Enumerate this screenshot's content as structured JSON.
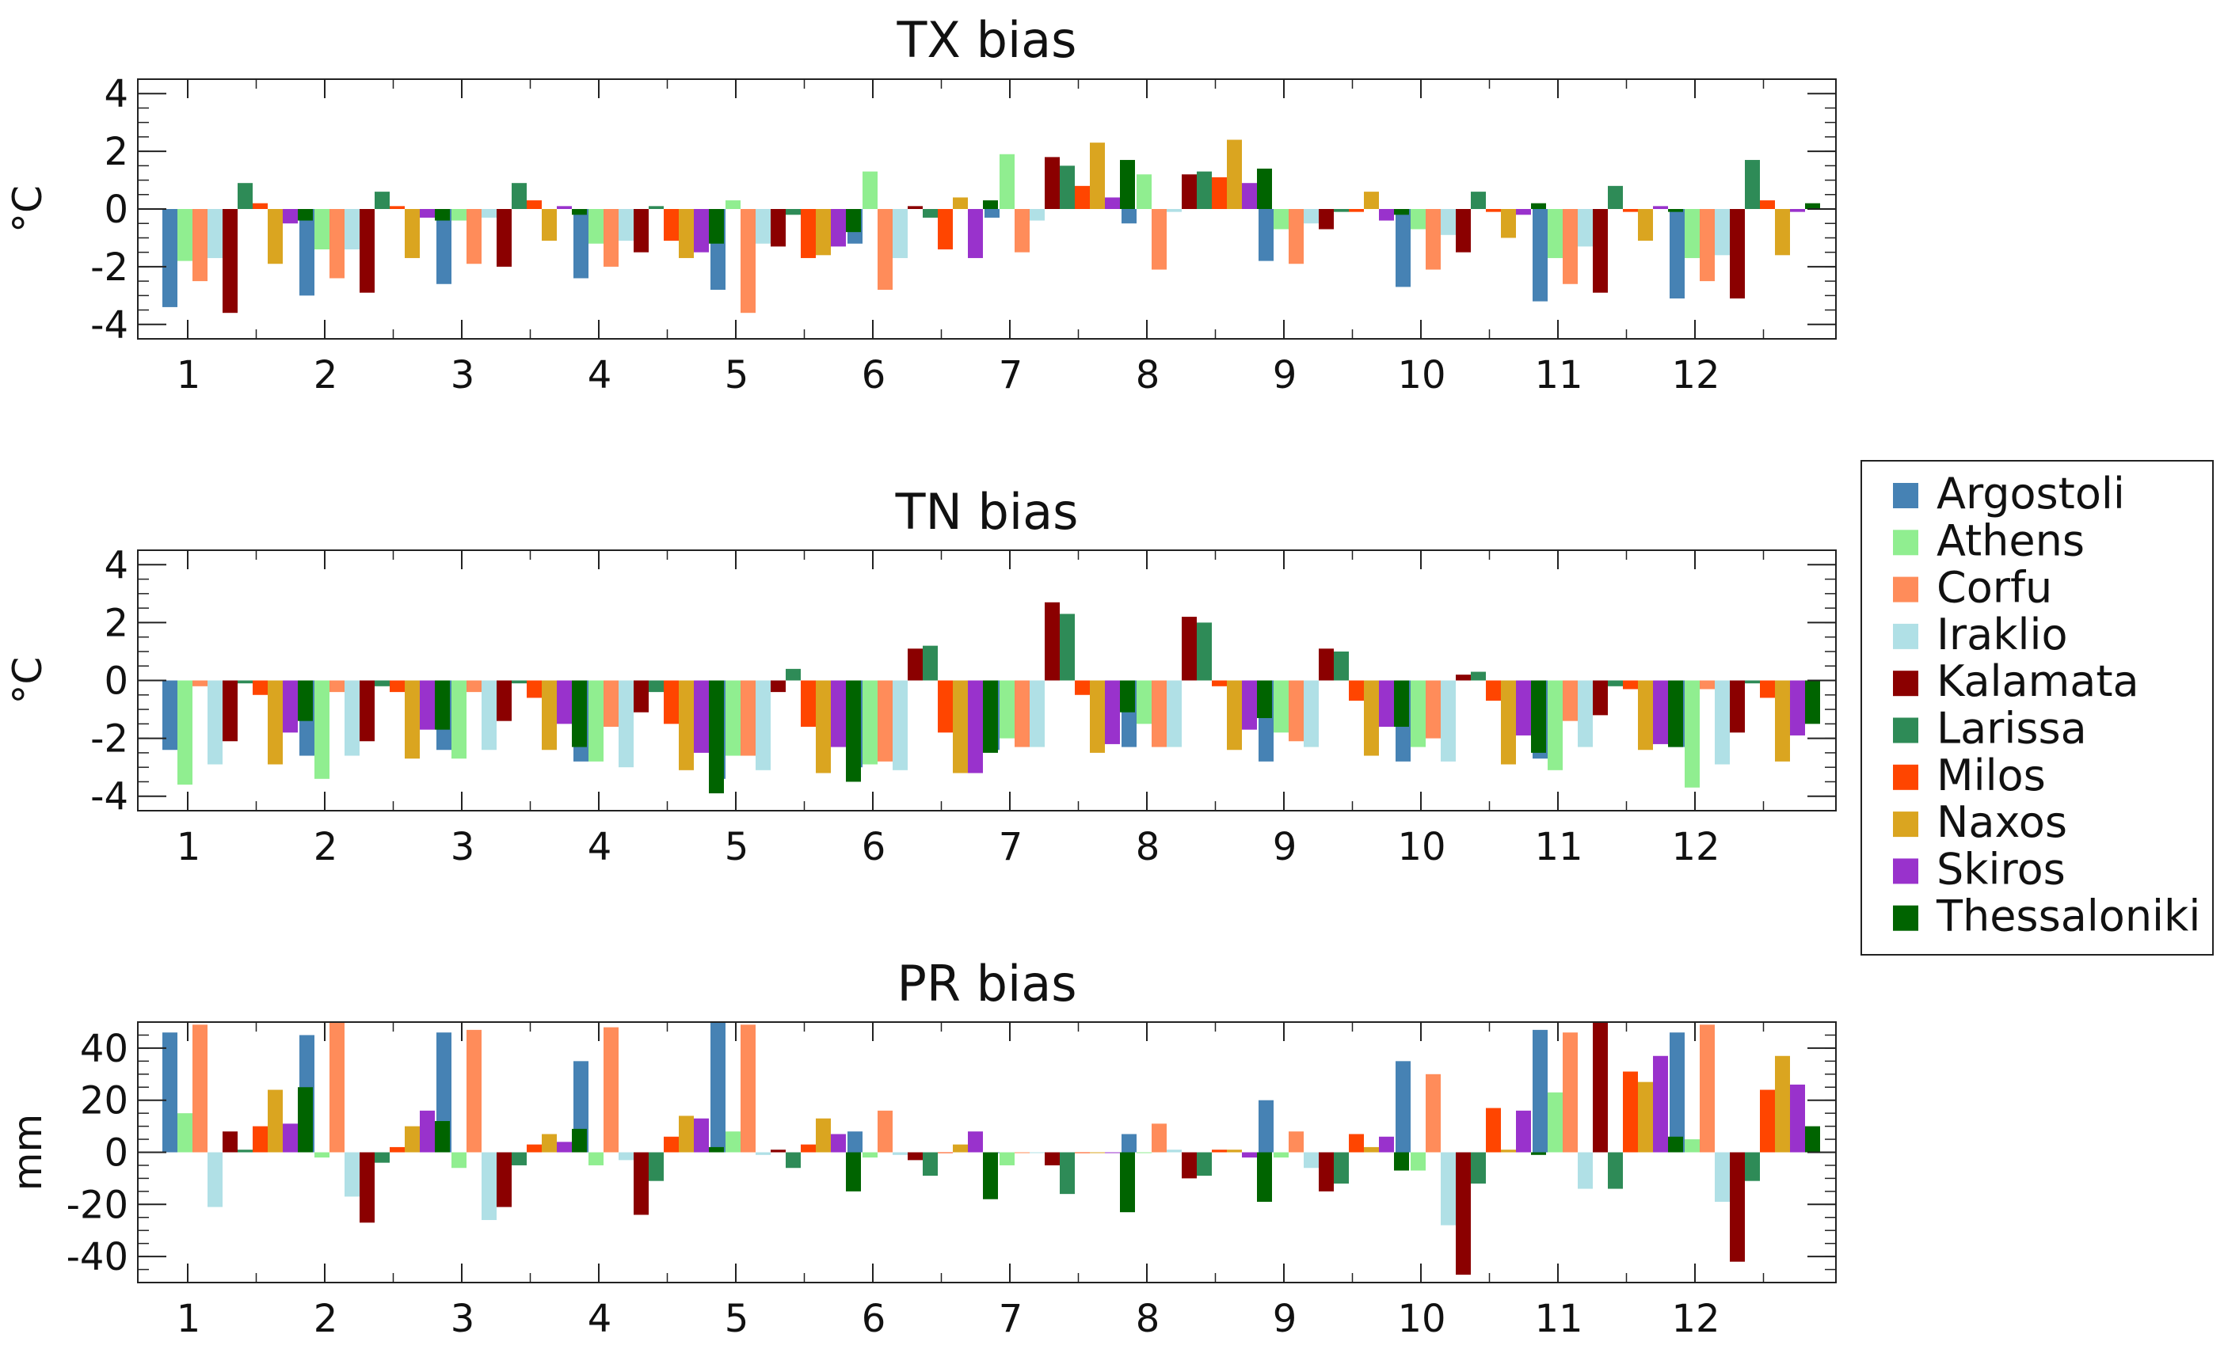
{
  "colors": {
    "Argostoli": "#4682b4",
    "Athens": "#90ee90",
    "Corfu": "#ff8c5a",
    "Iraklio": "#b0e0e6",
    "Kalamata": "#8b0000",
    "Larissa": "#2e8b57",
    "Milos": "#ff4500",
    "Naxos": "#daa520",
    "Skiros": "#9932cc",
    "Thessaloniki": "#006400"
  },
  "legend": {
    "entries": [
      "Argostoli",
      "Athens",
      "Corfu",
      "Iraklio",
      "Kalamata",
      "Larissa",
      "Milos",
      "Naxos",
      "Skiros",
      "Thessaloniki"
    ]
  },
  "chart_data": [
    {
      "type": "bar",
      "title": "TX bias",
      "xlabel": "",
      "ylabel": "°C",
      "ylim": [
        -4.5,
        4.5
      ],
      "yticks": [
        4,
        2,
        0,
        -2,
        -4
      ],
      "categories": [
        "1",
        "2",
        "3",
        "4",
        "5",
        "6",
        "7",
        "8",
        "9",
        "10",
        "11",
        "12"
      ],
      "series": [
        {
          "name": "Argostoli",
          "values": [
            -3.4,
            -3.0,
            -2.6,
            -2.4,
            -2.8,
            -1.2,
            -0.3,
            -0.5,
            -1.8,
            -2.7,
            -3.2,
            -3.1
          ]
        },
        {
          "name": "Athens",
          "values": [
            -1.8,
            -1.4,
            -0.4,
            -1.2,
            0.3,
            1.3,
            1.9,
            1.2,
            -0.7,
            -0.7,
            -1.7,
            -1.7
          ]
        },
        {
          "name": "Corfu",
          "values": [
            -2.5,
            -2.4,
            -1.9,
            -2.0,
            -3.6,
            -2.8,
            -1.5,
            -2.1,
            -1.9,
            -2.1,
            -2.6,
            -2.5
          ]
        },
        {
          "name": "Iraklio",
          "values": [
            -1.7,
            -1.4,
            -0.3,
            -1.1,
            -1.2,
            -1.7,
            -0.4,
            -0.1,
            -0.5,
            -0.9,
            -1.3,
            -1.6
          ]
        },
        {
          "name": "Kalamata",
          "values": [
            -3.6,
            -2.9,
            -2.0,
            -1.5,
            -1.3,
            0.1,
            1.8,
            1.2,
            -0.7,
            -1.5,
            -2.9,
            -3.1
          ]
        },
        {
          "name": "Larissa",
          "values": [
            0.9,
            0.6,
            0.9,
            0.1,
            -0.2,
            -0.3,
            1.5,
            1.3,
            -0.1,
            0.6,
            0.8,
            1.7
          ]
        },
        {
          "name": "Milos",
          "values": [
            0.2,
            0.1,
            0.3,
            -1.1,
            -1.7,
            -1.4,
            0.8,
            1.1,
            -0.1,
            -0.1,
            -0.1,
            0.3
          ]
        },
        {
          "name": "Naxos",
          "values": [
            -1.9,
            -1.7,
            -1.1,
            -1.7,
            -1.6,
            0.4,
            2.3,
            2.4,
            0.6,
            -1.0,
            -1.1,
            -1.6
          ]
        },
        {
          "name": "Skiros",
          "values": [
            -0.5,
            -0.3,
            0.1,
            -1.5,
            -1.3,
            -1.7,
            0.4,
            0.9,
            -0.4,
            -0.2,
            0.1,
            -0.1
          ]
        },
        {
          "name": "Thessaloniki",
          "values": [
            -0.4,
            -0.4,
            -0.2,
            -1.2,
            -0.8,
            0.3,
            1.7,
            1.4,
            -0.2,
            0.2,
            -0.1,
            0.2
          ]
        }
      ]
    },
    {
      "type": "bar",
      "title": "TN bias",
      "xlabel": "",
      "ylabel": "°C",
      "ylim": [
        -4.5,
        4.5
      ],
      "yticks": [
        4,
        2,
        0,
        -2,
        -4
      ],
      "categories": [
        "1",
        "2",
        "3",
        "4",
        "5",
        "6",
        "7",
        "8",
        "9",
        "10",
        "11",
        "12"
      ],
      "series": [
        {
          "name": "Argostoli",
          "values": [
            -2.4,
            -2.6,
            -2.4,
            -2.8,
            -3.4,
            -3.0,
            -2.4,
            -2.3,
            -2.8,
            -2.8,
            -2.7,
            -2.3
          ]
        },
        {
          "name": "Athens",
          "values": [
            -3.6,
            -3.4,
            -2.7,
            -2.8,
            -2.6,
            -2.9,
            -2.0,
            -1.5,
            -1.8,
            -2.3,
            -3.1,
            -3.7
          ]
        },
        {
          "name": "Corfu",
          "values": [
            -0.2,
            -0.4,
            -0.4,
            -1.6,
            -2.6,
            -2.8,
            -2.3,
            -2.3,
            -2.1,
            -2.0,
            -1.4,
            -0.3
          ]
        },
        {
          "name": "Iraklio",
          "values": [
            -2.9,
            -2.6,
            -2.4,
            -3.0,
            -3.1,
            -3.1,
            -2.3,
            -2.3,
            -2.3,
            -2.8,
            -2.3,
            -2.9
          ]
        },
        {
          "name": "Kalamata",
          "values": [
            -2.1,
            -2.1,
            -1.4,
            -1.1,
            -0.4,
            1.1,
            2.7,
            2.2,
            1.1,
            0.2,
            -1.2,
            -1.8
          ]
        },
        {
          "name": "Larissa",
          "values": [
            -0.1,
            -0.2,
            -0.1,
            -0.4,
            0.4,
            1.2,
            2.3,
            2.0,
            1.0,
            0.3,
            -0.2,
            -0.1
          ]
        },
        {
          "name": "Milos",
          "values": [
            -0.5,
            -0.4,
            -0.6,
            -1.5,
            -1.6,
            -1.8,
            -0.5,
            -0.2,
            -0.7,
            -0.7,
            -0.3,
            -0.6
          ]
        },
        {
          "name": "Naxos",
          "values": [
            -2.9,
            -2.7,
            -2.4,
            -3.1,
            -3.2,
            -3.2,
            -2.5,
            -2.4,
            -2.6,
            -2.9,
            -2.4,
            -2.8
          ]
        },
        {
          "name": "Skiros",
          "values": [
            -1.8,
            -1.7,
            -1.5,
            -2.5,
            -2.3,
            -3.2,
            -2.2,
            -1.7,
            -1.6,
            -1.9,
            -2.2,
            -1.9
          ]
        },
        {
          "name": "Thessaloniki",
          "values": [
            -1.4,
            -1.7,
            -2.3,
            -3.9,
            -3.5,
            -2.5,
            -1.1,
            -1.3,
            -1.6,
            -2.5,
            -2.3,
            -1.5
          ]
        }
      ]
    },
    {
      "type": "bar",
      "title": "PR bias",
      "xlabel": "",
      "ylabel": "mm",
      "ylim": [
        -50,
        50
      ],
      "yticks": [
        40,
        20,
        0,
        -20,
        -40
      ],
      "categories": [
        "1",
        "2",
        "3",
        "4",
        "5",
        "6",
        "7",
        "8",
        "9",
        "10",
        "11",
        "12"
      ],
      "series": [
        {
          "name": "Argostoli",
          "values": [
            46,
            45,
            46,
            35,
            50,
            8,
            0,
            7,
            20,
            35,
            47,
            46
          ]
        },
        {
          "name": "Athens",
          "values": [
            15,
            -2,
            -6,
            -5,
            8,
            -2,
            -5,
            0,
            -2,
            -7,
            23,
            5
          ]
        },
        {
          "name": "Corfu",
          "values": [
            49,
            50,
            47,
            48,
            49,
            16,
            0,
            11,
            8,
            30,
            46,
            49
          ]
        },
        {
          "name": "Iraklio",
          "values": [
            -21,
            -17,
            -26,
            -3,
            -1,
            -1,
            0,
            1,
            -6,
            -28,
            -14,
            -19
          ]
        },
        {
          "name": "Kalamata",
          "values": [
            8,
            -27,
            -21,
            -24,
            1,
            -3,
            -5,
            -10,
            -15,
            -47,
            50,
            -42
          ]
        },
        {
          "name": "Larissa",
          "values": [
            1,
            -4,
            -5,
            -11,
            -6,
            -9,
            -16,
            -9,
            -12,
            -12,
            -14,
            -11
          ]
        },
        {
          "name": "Milos",
          "values": [
            10,
            2,
            3,
            6,
            3,
            0,
            0,
            1,
            7,
            17,
            31,
            24
          ]
        },
        {
          "name": "Naxos",
          "values": [
            24,
            10,
            7,
            14,
            13,
            3,
            0,
            1,
            2,
            1,
            27,
            37
          ]
        },
        {
          "name": "Skiros",
          "values": [
            11,
            16,
            4,
            13,
            7,
            8,
            0,
            -2,
            6,
            16,
            37,
            26
          ]
        },
        {
          "name": "Thessaloniki",
          "values": [
            25,
            12,
            9,
            2,
            -15,
            -18,
            -23,
            -19,
            -7,
            -1,
            6,
            10
          ]
        }
      ]
    }
  ]
}
